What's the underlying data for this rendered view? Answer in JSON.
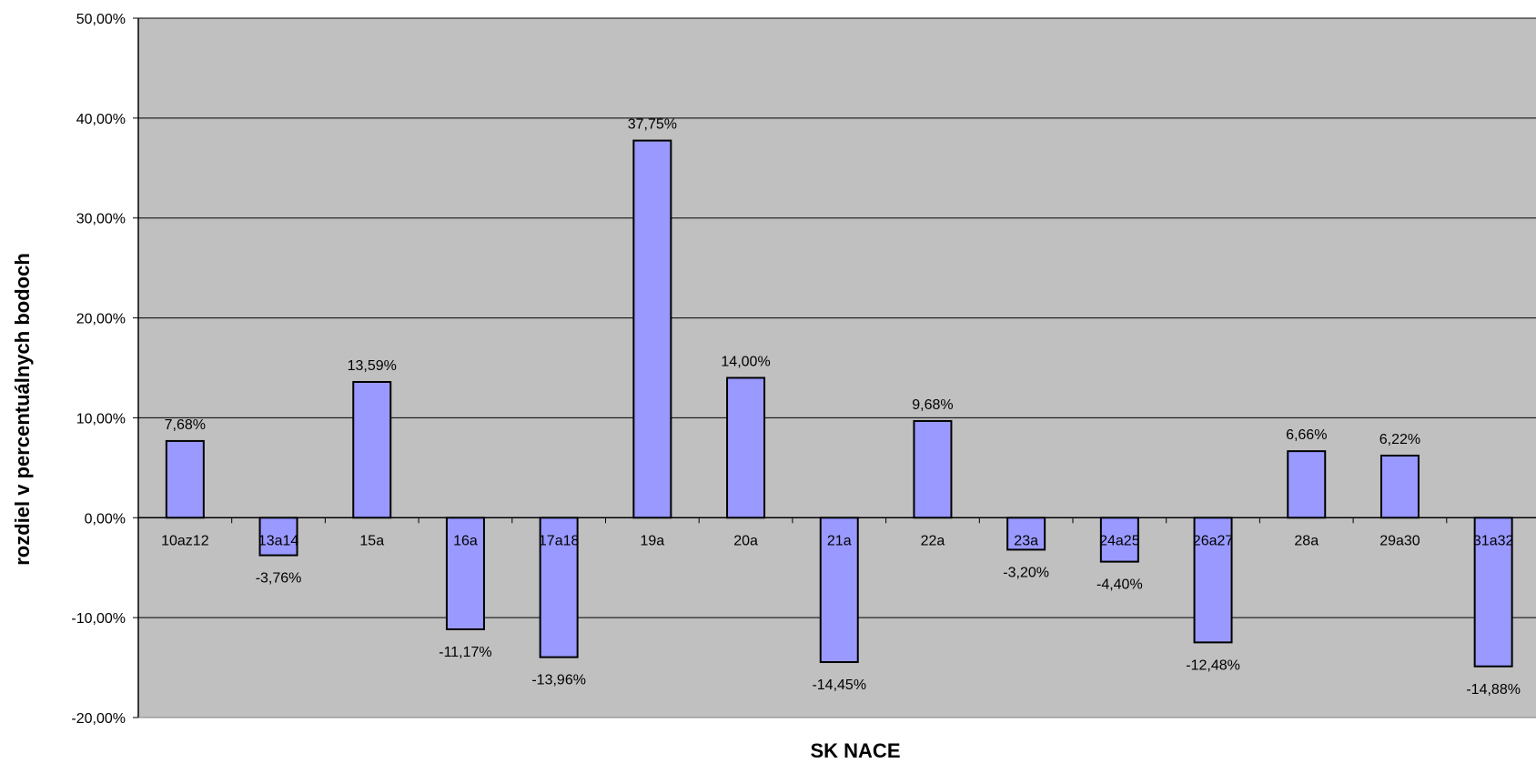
{
  "chart_data": {
    "type": "bar",
    "xlabel": "SK NACE",
    "ylabel": "rozdiel v percentuálnych bodoch",
    "ylim": [
      -20,
      50
    ],
    "ytick_step": 10,
    "yticks": [
      "-20,00%",
      "-10,00%",
      "0,00%",
      "10,00%",
      "20,00%",
      "30,00%",
      "40,00%",
      "50,00%"
    ],
    "grid": true,
    "legend": "none",
    "categories": [
      "10az12",
      "13a14",
      "15a",
      "16a",
      "17a18",
      "19a",
      "20a",
      "21a",
      "22a",
      "23a",
      "24a25",
      "26a27",
      "28a",
      "29a30",
      "31a32"
    ],
    "values": [
      7.68,
      -3.76,
      13.59,
      -11.17,
      -13.96,
      37.75,
      14.0,
      -14.45,
      9.68,
      -3.2,
      -4.4,
      -12.48,
      6.66,
      6.22,
      -14.88
    ],
    "data_labels": [
      "7,68%",
      "-3,76%",
      "13,59%",
      "-11,17%",
      "-13,96%",
      "37,75%",
      "14,00%",
      "-14,45%",
      "9,68%",
      "-3,20%",
      "-4,40%",
      "-12,48%",
      "6,66%",
      "6,22%",
      "-14,88%"
    ],
    "colors": {
      "bar_fill": "#9999ff",
      "bar_stroke": "#000000",
      "plot_bg": "#c0c0c0",
      "grid": "#000000"
    }
  }
}
